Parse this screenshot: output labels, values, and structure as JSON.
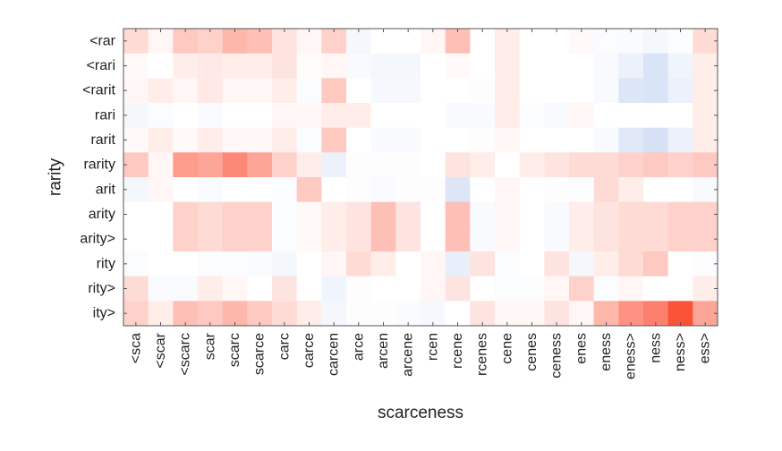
{
  "chart_data": {
    "type": "heatmap",
    "xlabel": "scarceness",
    "ylabel": "rarity",
    "x_categories": [
      "<sca",
      "<scar",
      "<scarc",
      "scar",
      "scarc",
      "scarce",
      "carc",
      "carce",
      "carcen",
      "arce",
      "arcen",
      "arcene",
      "rcen",
      "rcene",
      "rcenes",
      "cene",
      "cenes",
      "ceness",
      "enes",
      "eness",
      "eness>",
      "ness",
      "ness>",
      "ess>"
    ],
    "y_categories": [
      "<rar",
      "<rari",
      "<rarit",
      "rari",
      "rarit",
      "rarity",
      "arit",
      "arity",
      "arity>",
      "rity",
      "rity>",
      "ity>"
    ],
    "colormap": {
      "negative": "#b4c8ee",
      "neutral": "#ffffff",
      "positive": "#fb4a2e"
    },
    "value_range": [
      -1,
      1
    ],
    "grid": false,
    "values": [
      [
        0.2,
        0.05,
        0.3,
        0.25,
        0.4,
        0.35,
        0.15,
        0.05,
        0.25,
        -0.15,
        0.0,
        0.0,
        0.05,
        0.35,
        0.0,
        0.1,
        0.0,
        0.0,
        0.03,
        -0.05,
        -0.08,
        -0.15,
        -0.05,
        0.2
      ],
      [
        0.03,
        0.0,
        0.1,
        0.12,
        0.1,
        0.1,
        0.15,
        0.02,
        0.05,
        -0.1,
        -0.15,
        -0.15,
        0.0,
        0.03,
        0.0,
        0.1,
        0.0,
        0.0,
        0.0,
        -0.1,
        -0.25,
        -0.5,
        -0.2,
        0.1
      ],
      [
        0.05,
        0.1,
        0.05,
        0.12,
        0.05,
        0.05,
        0.1,
        -0.05,
        0.3,
        0.0,
        -0.12,
        -0.12,
        0.0,
        0.0,
        -0.03,
        0.1,
        0.0,
        0.0,
        0.0,
        -0.1,
        -0.45,
        -0.5,
        -0.25,
        0.1
      ],
      [
        -0.15,
        -0.05,
        0.0,
        -0.08,
        0.0,
        0.0,
        0.05,
        0.05,
        0.1,
        0.1,
        0.0,
        0.0,
        0.0,
        -0.1,
        -0.1,
        0.1,
        -0.05,
        -0.1,
        0.05,
        0.0,
        0.0,
        0.0,
        0.0,
        0.1
      ],
      [
        0.03,
        0.1,
        0.03,
        0.1,
        0.05,
        0.05,
        0.1,
        -0.05,
        0.3,
        0.0,
        -0.1,
        -0.1,
        0.0,
        0.0,
        -0.03,
        0.05,
        0.0,
        0.0,
        0.0,
        -0.1,
        -0.4,
        -0.55,
        -0.25,
        0.1
      ],
      [
        0.3,
        0.05,
        0.55,
        0.5,
        0.65,
        0.5,
        0.25,
        0.1,
        -0.25,
        -0.03,
        -0.03,
        -0.03,
        0.0,
        0.15,
        0.1,
        0.0,
        0.1,
        0.15,
        0.2,
        0.2,
        0.25,
        0.3,
        0.25,
        0.3
      ],
      [
        -0.15,
        0.05,
        0.0,
        -0.08,
        0.0,
        0.0,
        -0.05,
        0.3,
        0.0,
        -0.03,
        -0.08,
        -0.03,
        -0.03,
        -0.45,
        0.0,
        0.05,
        0.0,
        -0.03,
        -0.05,
        0.2,
        0.1,
        0.0,
        0.0,
        -0.1
      ],
      [
        0.0,
        0.0,
        0.25,
        0.2,
        0.25,
        0.25,
        -0.05,
        0.03,
        0.1,
        0.15,
        0.35,
        0.15,
        0.0,
        0.35,
        -0.1,
        0.05,
        0.0,
        -0.1,
        0.1,
        0.15,
        0.2,
        0.2,
        0.25,
        0.25
      ],
      [
        0.0,
        0.0,
        0.25,
        0.2,
        0.25,
        0.25,
        -0.05,
        0.03,
        0.1,
        0.15,
        0.35,
        0.15,
        0.0,
        0.35,
        -0.1,
        0.05,
        0.0,
        -0.1,
        0.1,
        0.15,
        0.2,
        0.2,
        0.25,
        0.25
      ],
      [
        -0.05,
        0.0,
        0.0,
        -0.05,
        -0.05,
        -0.08,
        -0.15,
        0.0,
        0.05,
        0.2,
        0.1,
        0.0,
        0.05,
        -0.3,
        0.15,
        -0.05,
        0.0,
        0.15,
        -0.15,
        0.1,
        0.2,
        0.3,
        0.0,
        -0.05
      ],
      [
        0.2,
        -0.08,
        -0.08,
        0.1,
        0.05,
        0.0,
        0.15,
        0.0,
        -0.2,
        -0.03,
        0.0,
        0.0,
        0.05,
        0.15,
        0.0,
        -0.05,
        -0.05,
        0.05,
        0.25,
        -0.05,
        0.05,
        0.0,
        0.0,
        0.1
      ],
      [
        0.25,
        0.1,
        0.35,
        0.3,
        0.4,
        0.3,
        0.2,
        0.1,
        -0.15,
        -0.03,
        -0.03,
        -0.08,
        -0.12,
        0.0,
        0.15,
        0.05,
        0.05,
        0.15,
        0.05,
        0.4,
        0.6,
        0.7,
        0.95,
        0.5
      ]
    ]
  }
}
